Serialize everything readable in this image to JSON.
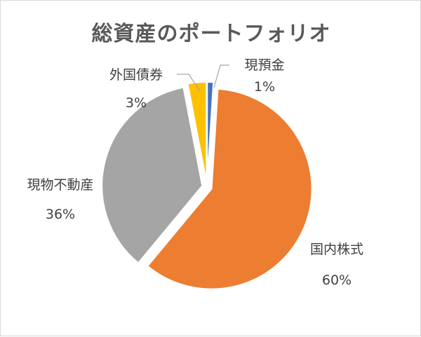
{
  "chart_data": {
    "type": "pie",
    "title": "総資産のポートフォリオ",
    "slices": [
      {
        "name": "現預金",
        "percent_label": "1%",
        "value": 1,
        "color": "#4472c4"
      },
      {
        "name": "国内株式",
        "percent_label": "60%",
        "value": 60,
        "color": "#ed7d31"
      },
      {
        "name": "現物不動産",
        "percent_label": "36%",
        "value": 36,
        "color": "#a5a5a5"
      },
      {
        "name": "外国債券",
        "percent_label": "3%",
        "value": 3,
        "color": "#ffc000"
      }
    ],
    "start_angle_deg": 0,
    "direction": "clockwise",
    "exploded": true,
    "legend": "none"
  }
}
